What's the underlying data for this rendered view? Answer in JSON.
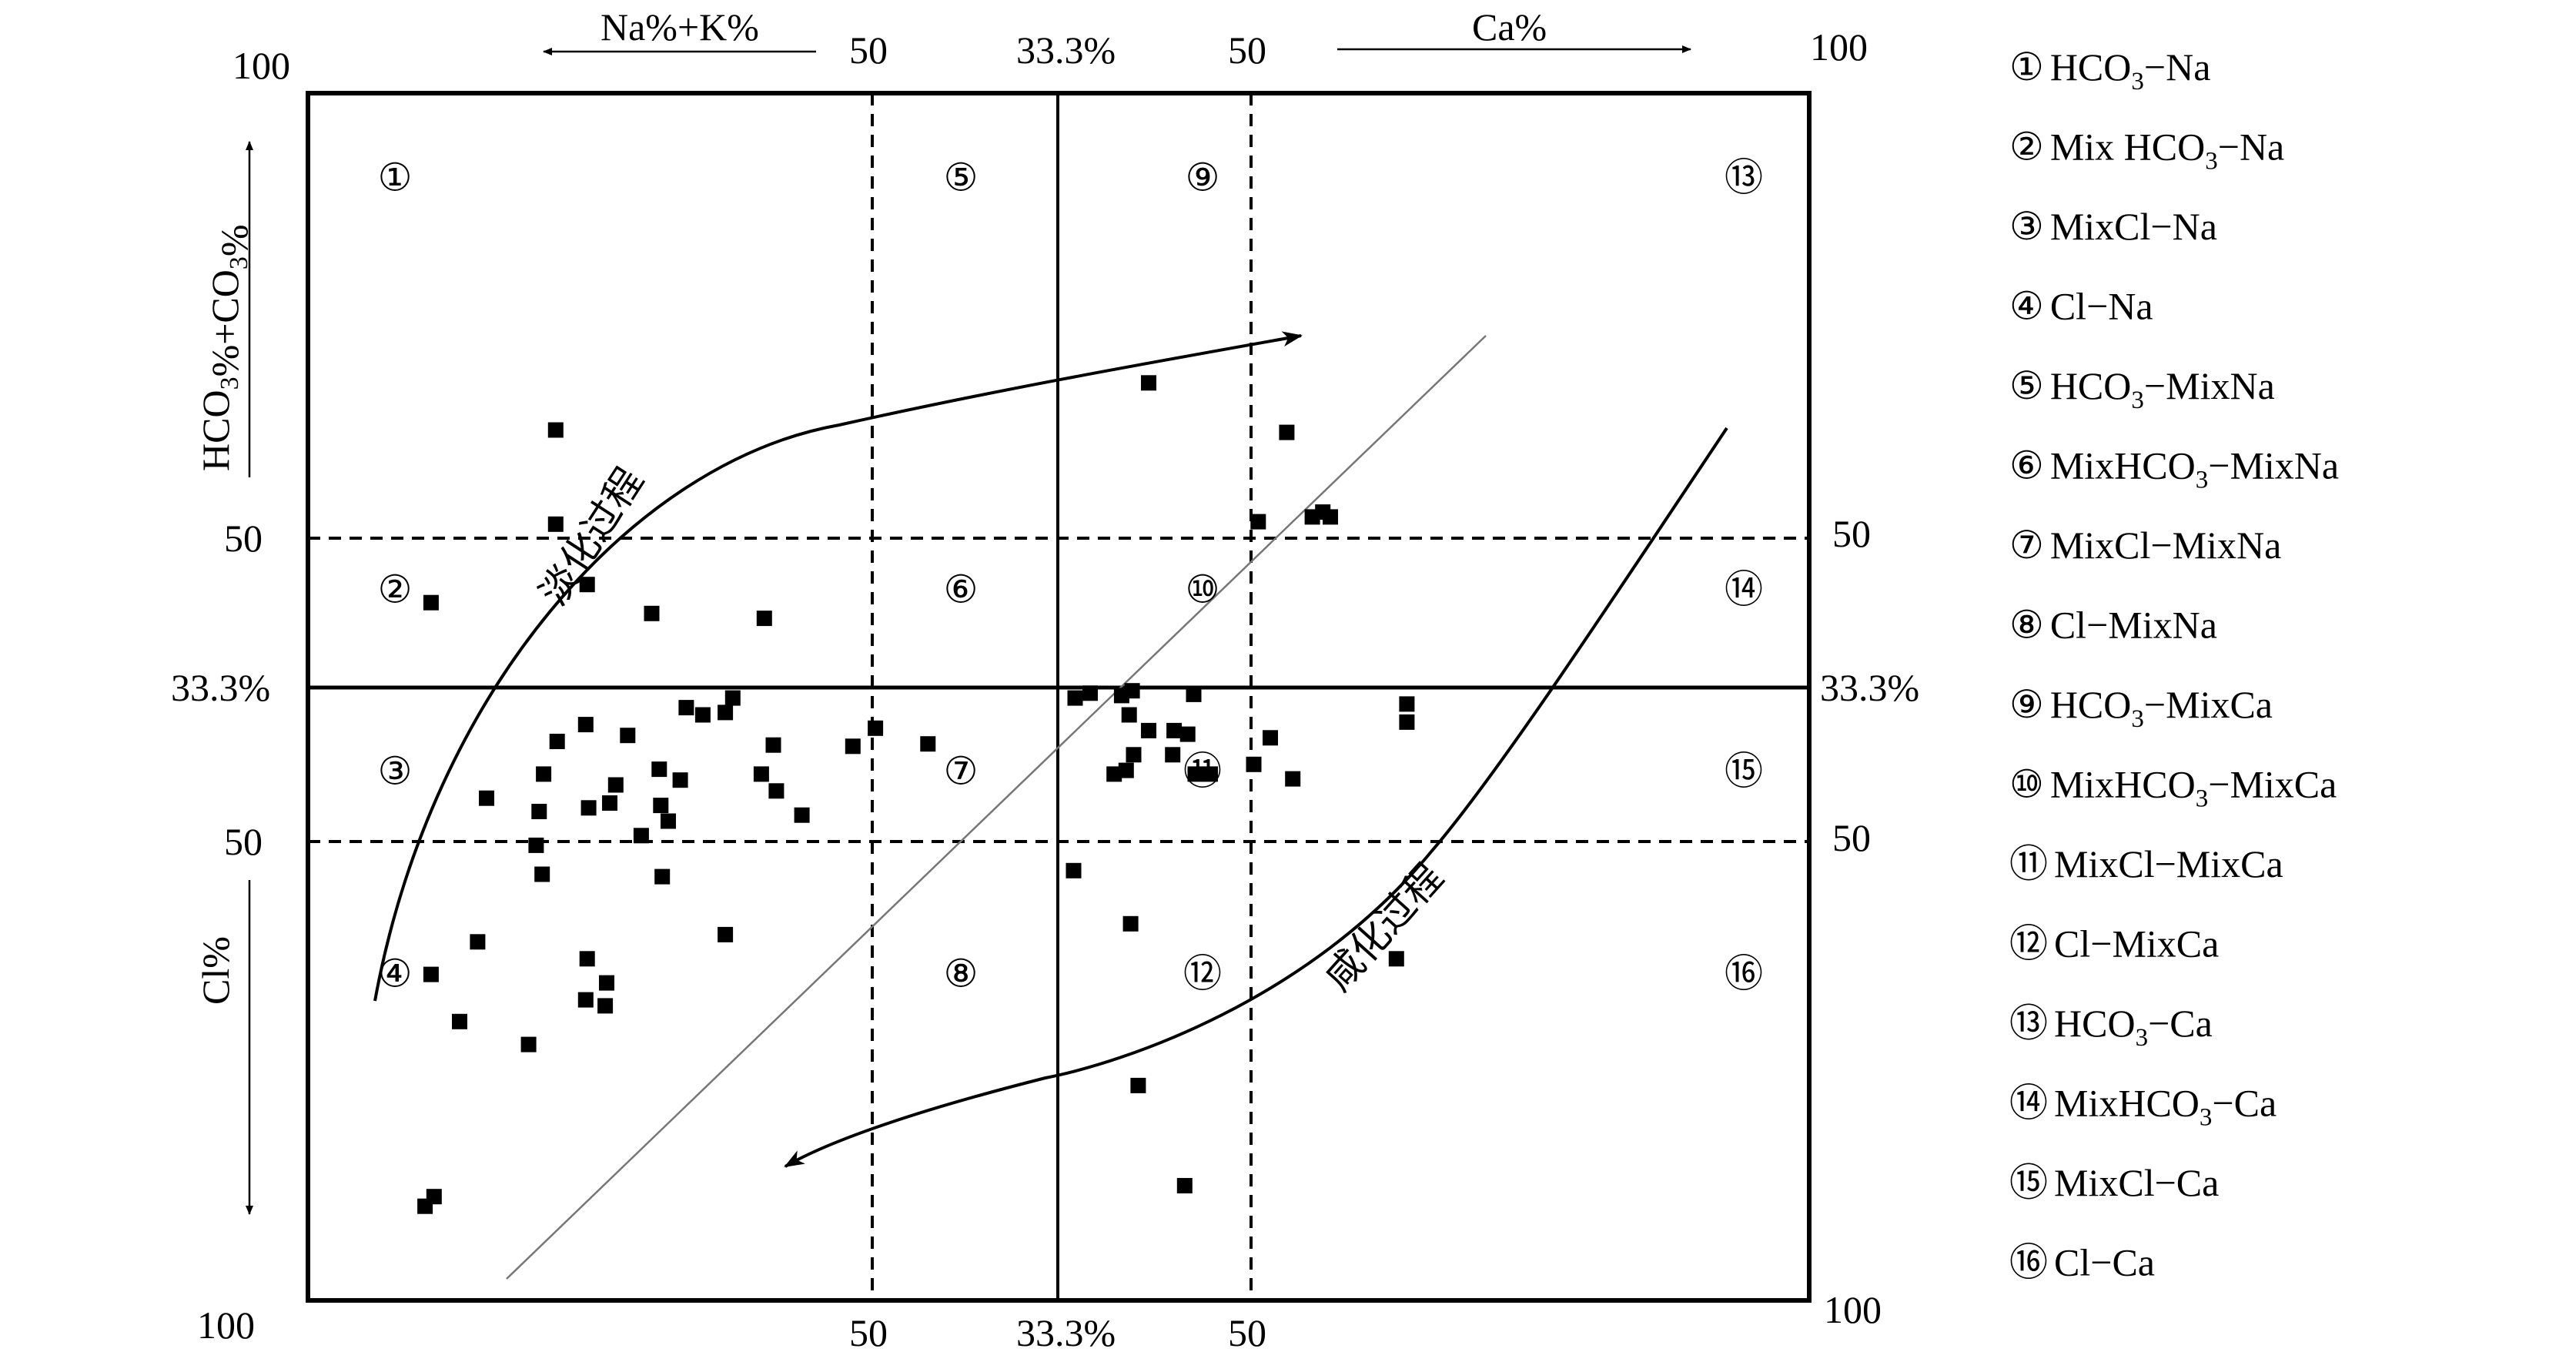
{
  "chart_data": {
    "type": "scatter",
    "title": "",
    "axes": {
      "top_left_label": "Na%+K%",
      "top_right_label": "Ca%",
      "left_top_label": "HCO3%+CO3%",
      "left_bottom_label": "Cl%"
    },
    "tick_labels": {
      "top": [
        "100",
        "50",
        "33.3%",
        "50",
        "100"
      ],
      "bottom": [
        "100",
        "50",
        "33.3%",
        "50",
        "100"
      ],
      "left": [
        "50",
        "33.3%",
        "50"
      ],
      "right": [
        "50",
        "33.3%",
        "50"
      ]
    },
    "zone_numbers": [
      "①",
      "②",
      "③",
      "④",
      "⑤",
      "⑥",
      "⑦",
      "⑧",
      "⑨",
      "⑩",
      "⑪",
      "⑫",
      "⑬",
      "⑭",
      "⑮",
      "⑯"
    ],
    "legend": [
      {
        "num": "①",
        "pre": "HCO",
        "sub": "3",
        "post": "−Na"
      },
      {
        "num": "②",
        "pre": "Mix HCO",
        "sub": "3",
        "post": "−Na"
      },
      {
        "num": "③",
        "pre": "MixCl−Na",
        "sub": "",
        "post": ""
      },
      {
        "num": "④",
        "pre": "Cl−Na",
        "sub": "",
        "post": ""
      },
      {
        "num": "⑤",
        "pre": "HCO",
        "sub": "3",
        "post": "−MixNa"
      },
      {
        "num": "⑥",
        "pre": "MixHCO",
        "sub": "3",
        "post": "−MixNa"
      },
      {
        "num": "⑦",
        "pre": "MixCl−MixNa",
        "sub": "",
        "post": ""
      },
      {
        "num": "⑧",
        "pre": "Cl−MixNa",
        "sub": "",
        "post": ""
      },
      {
        "num": "⑨",
        "pre": "HCO",
        "sub": "3",
        "post": "−MixCa"
      },
      {
        "num": "⑩",
        "pre": "MixHCO",
        "sub": "3",
        "post": "−MixCa"
      },
      {
        "num": "⑪",
        "pre": "MixCl−MixCa",
        "sub": "",
        "post": ""
      },
      {
        "num": "⑫",
        "pre": "Cl−MixCa",
        "sub": "",
        "post": ""
      },
      {
        "num": "⑬",
        "pre": "HCO",
        "sub": "3",
        "post": "−Ca"
      },
      {
        "num": "⑭",
        "pre": "MixHCO",
        "sub": "3",
        "post": "−Ca"
      },
      {
        "num": "⑮",
        "pre": "MixCl−Ca",
        "sub": "",
        "post": ""
      },
      {
        "num": "⑯",
        "pre": "Cl−Ca",
        "sub": "",
        "post": ""
      }
    ],
    "annotations": {
      "freshening": "淡化过程",
      "salinization": "咸化过程"
    },
    "x_range": [
      0,
      1
    ],
    "y_range": [
      0,
      1
    ],
    "points": [
      [
        0.165,
        0.721
      ],
      [
        0.165,
        0.643
      ],
      [
        0.185,
        0.477
      ],
      [
        0.186,
        0.593
      ],
      [
        0.082,
        0.578
      ],
      [
        0.187,
        0.408
      ],
      [
        0.154,
        0.405
      ],
      [
        0.152,
        0.377
      ],
      [
        0.213,
        0.468
      ],
      [
        0.156,
        0.353
      ],
      [
        0.304,
        0.565
      ],
      [
        0.229,
        0.569
      ],
      [
        0.119,
        0.416
      ],
      [
        0.082,
        0.27
      ],
      [
        0.252,
        0.491
      ],
      [
        0.263,
        0.485
      ],
      [
        0.278,
        0.487
      ],
      [
        0.234,
        0.44
      ],
      [
        0.235,
        0.41
      ],
      [
        0.31,
        0.46
      ],
      [
        0.312,
        0.422
      ],
      [
        0.205,
        0.427
      ],
      [
        0.157,
        0.436
      ],
      [
        0.166,
        0.463
      ],
      [
        0.236,
        0.351
      ],
      [
        0.248,
        0.431
      ],
      [
        0.24,
        0.397
      ],
      [
        0.278,
        0.303
      ],
      [
        0.329,
        0.402
      ],
      [
        0.413,
        0.461
      ],
      [
        0.363,
        0.459
      ],
      [
        0.283,
        0.499
      ],
      [
        0.378,
        0.474
      ],
      [
        0.302,
        0.436
      ],
      [
        0.201,
        0.412
      ],
      [
        0.222,
        0.385
      ],
      [
        0.186,
        0.283
      ],
      [
        0.199,
        0.263
      ],
      [
        0.198,
        0.244
      ],
      [
        0.185,
        0.249
      ],
      [
        0.113,
        0.297
      ],
      [
        0.147,
        0.212
      ],
      [
        0.101,
        0.231
      ],
      [
        0.084,
        0.086
      ],
      [
        0.078,
        0.078
      ],
      [
        0.56,
        0.76
      ],
      [
        0.652,
        0.719
      ],
      [
        0.633,
        0.645
      ],
      [
        0.681,
        0.649
      ],
      [
        0.669,
        0.649
      ],
      [
        0.676,
        0.653
      ],
      [
        0.511,
        0.499
      ],
      [
        0.521,
        0.503
      ],
      [
        0.542,
        0.501
      ],
      [
        0.549,
        0.505
      ],
      [
        0.547,
        0.485
      ],
      [
        0.56,
        0.472
      ],
      [
        0.59,
        0.502
      ],
      [
        0.577,
        0.472
      ],
      [
        0.576,
        0.452
      ],
      [
        0.55,
        0.452
      ],
      [
        0.537,
        0.436
      ],
      [
        0.545,
        0.439
      ],
      [
        0.586,
        0.469
      ],
      [
        0.591,
        0.436
      ],
      [
        0.601,
        0.436
      ],
      [
        0.63,
        0.444
      ],
      [
        0.641,
        0.466
      ],
      [
        0.656,
        0.432
      ],
      [
        0.732,
        0.494
      ],
      [
        0.732,
        0.479
      ],
      [
        0.51,
        0.356
      ],
      [
        0.548,
        0.312
      ],
      [
        0.553,
        0.178
      ],
      [
        0.584,
        0.095
      ],
      [
        0.725,
        0.283
      ]
    ]
  }
}
